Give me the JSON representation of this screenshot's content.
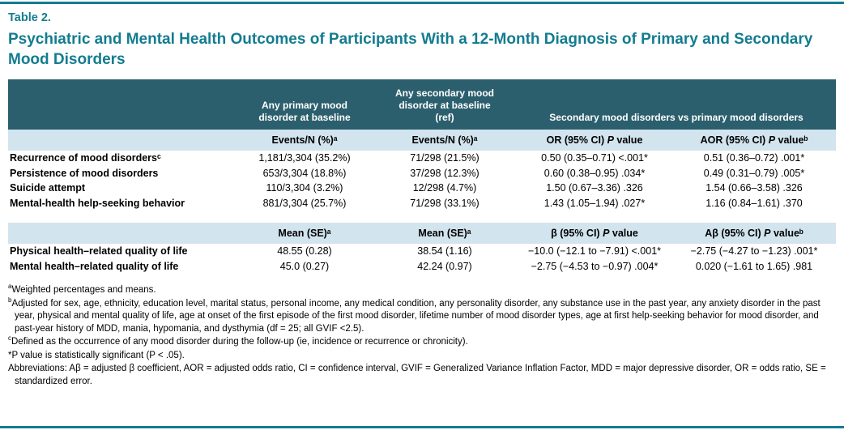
{
  "label": "Table 2.",
  "title": "Psychiatric and Mental Health Outcomes of Participants With a 12-Month Diagnosis of Primary and Secondary Mood Disorders",
  "columns": {
    "primary": "Any primary mood\ndisorder at baseline",
    "secondary": "Any secondary mood\ndisorder at baseline\n(ref)",
    "comparison": "Secondary mood disorders vs primary mood disorders"
  },
  "subheaders": {
    "events": "Events/N (%)ᵃ",
    "mean": "Mean (SE)ᵃ",
    "or": {
      "pre": "OR (95% CI) ",
      "p": "P",
      "post": " value"
    },
    "aor": {
      "pre": "AOR (95% CI) ",
      "p": "P",
      "post": " valueᵇ"
    },
    "beta": {
      "pre": "β (95% CI) ",
      "p": "P",
      "post": " value"
    },
    "abeta": {
      "pre": "Aβ (95% CI) ",
      "p": "P",
      "post": " valueᵇ"
    }
  },
  "event_rows": [
    {
      "label": "Recurrence of mood disordersᶜ",
      "primary": "1,181/3,304 (35.2%)",
      "secondary": "71/298 (21.5%)",
      "or": "0.50 (0.35–0.71) <.001*",
      "aor": "0.51 (0.36–0.72) .001*"
    },
    {
      "label": "Persistence of mood disorders",
      "primary": "653/3,304 (18.8%)",
      "secondary": "37/298 (12.3%)",
      "or": "0.60 (0.38–0.95) .034*",
      "aor": "0.49 (0.31–0.79) .005*"
    },
    {
      "label": "Suicide attempt",
      "primary": "110/3,304 (3.2%)",
      "secondary": "12/298 (4.7%)",
      "or": "1.50 (0.67–3.36) .326",
      "aor": "1.54 (0.66–3.58) .326"
    },
    {
      "label": "Mental-health help-seeking behavior",
      "primary": "881/3,304 (25.7%)",
      "secondary": "71/298 (33.1%)",
      "or": "1.43 (1.05–1.94) .027*",
      "aor": "1.16 (0.84–1.61) .370"
    }
  ],
  "mean_rows": [
    {
      "label": "Physical health–related quality of life",
      "primary": "48.55 (0.28)",
      "secondary": "38.54 (1.16)",
      "or": "−10.0 (−12.1 to −7.91) <.001*",
      "aor": "−2.75 (−4.27 to −1.23) .001*"
    },
    {
      "label": "Mental health–related quality of life",
      "primary": "45.0 (0.27)",
      "secondary": "42.24 (0.97)",
      "or": "−2.75 (−4.53 to −0.97) .004*",
      "aor": "0.020 (−1.61 to 1.65) .981"
    }
  ],
  "footnotes": [
    {
      "marker": "a",
      "text": "Weighted percentages and means."
    },
    {
      "marker": "b",
      "text": "Adjusted for sex, age, ethnicity, education level, marital status, personal income, any medical condition, any personality disorder, any substance use in the past year, any anxiety disorder in the past year, physical and mental quality of life, age at onset of the first episode of the first mood disorder, lifetime number of mood disorder types, age at first help-seeking behavior for mood disorder, and past-year history of MDD, mania, hypomania, and dysthymia (df = 25; all GVIF <2.5)."
    },
    {
      "marker": "c",
      "text": "Defined as the occurrence of any mood disorder during the follow-up (ie, incidence or recurrence or chronicity)."
    },
    {
      "marker": "",
      "text": "*P value is statistically significant (P < .05)."
    },
    {
      "marker": "",
      "text": "Abbreviations: Aβ = adjusted β coefficient, AOR = adjusted odds ratio, CI = confidence interval, GVIF = Generalized Variance Inflation Factor, MDD = major depressive disorder, OR = odds ratio, SE = standardized error."
    }
  ],
  "colors": {
    "accent": "#137c90",
    "header_bg": "#2c5f6e",
    "subheader_bg": "#d2e4ee",
    "text": "#000000"
  }
}
